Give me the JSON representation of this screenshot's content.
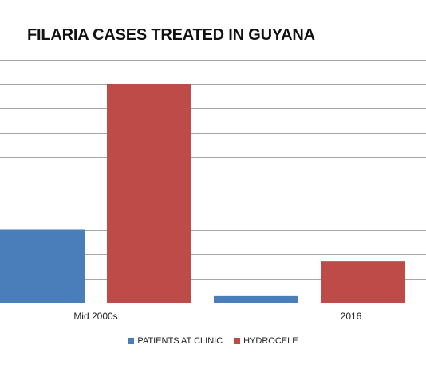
{
  "chart_data": {
    "type": "bar",
    "title": "FILARIA CASES TREATED IN GUYANA",
    "categories": [
      "Mid 2000s",
      "2016"
    ],
    "series": [
      {
        "name": "PATIENTS AT CLINIC",
        "color": "#4a7ebb",
        "values": [
          3,
          0.3
        ]
      },
      {
        "name": "HYDROCELE",
        "color": "#be4b48",
        "values": [
          9,
          1.7
        ]
      }
    ],
    "ylim": [
      0,
      10
    ],
    "y_gridlines": [
      0,
      1,
      2,
      3,
      4,
      5,
      6,
      7,
      8,
      9,
      10
    ],
    "grid": true,
    "legend_position": "bottom",
    "xlabel": "",
    "ylabel": ""
  }
}
